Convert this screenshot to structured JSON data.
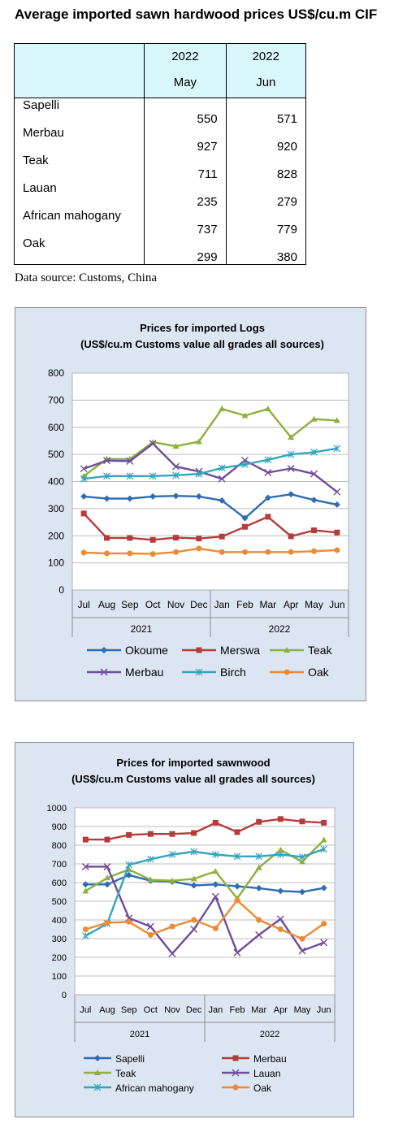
{
  "page_title": "Average imported sawn hardwood prices US$/cu.m CIF",
  "table": {
    "col1": {
      "year": "2022",
      "month": "May"
    },
    "col2": {
      "year": "2022",
      "month": "Jun"
    },
    "rows": [
      {
        "name": "Sapelli",
        "may": "550",
        "jun": "571"
      },
      {
        "name": "Merbau",
        "may": "927",
        "jun": "920"
      },
      {
        "name": "Teak",
        "may": "711",
        "jun": "828"
      },
      {
        "name": "Lauan",
        "may": "235",
        "jun": "279"
      },
      {
        "name": "African mahogany",
        "may": "737",
        "jun": "779"
      },
      {
        "name": "Oak",
        "may": "299",
        "jun": "380"
      }
    ]
  },
  "data_source": "Data source: Customs, China",
  "chart_data": [
    {
      "type": "line",
      "title": "Prices for imported Logs",
      "subtitle": "(US$/cu.m Customs value all grades all sources)",
      "categories": [
        "Jul",
        "Aug",
        "Sep",
        "Oct",
        "Nov",
        "Dec",
        "Jan",
        "Feb",
        "Mar",
        "Apr",
        "May",
        "Jun"
      ],
      "year_groups": [
        {
          "label": "2021",
          "count": 6
        },
        {
          "label": "2022",
          "count": 6
        }
      ],
      "ylim": [
        0,
        800
      ],
      "yticks": [
        0,
        100,
        200,
        300,
        400,
        500,
        600,
        700,
        800
      ],
      "grid": true,
      "legend_position": "bottom",
      "series": [
        {
          "name": "Okoume",
          "color": "#2e6db4",
          "marker": "diamond",
          "values": [
            345,
            337,
            337,
            345,
            347,
            345,
            330,
            265,
            340,
            353,
            332,
            315
          ]
        },
        {
          "name": "Merswa",
          "color": "#b83b3b",
          "marker": "square",
          "values": [
            282,
            192,
            192,
            185,
            193,
            190,
            197,
            233,
            270,
            198,
            220,
            212
          ]
        },
        {
          "name": "Teak",
          "color": "#8db03e",
          "marker": "triangle",
          "values": [
            420,
            483,
            483,
            545,
            530,
            547,
            668,
            643,
            668,
            563,
            630,
            625
          ]
        },
        {
          "name": "Merbau",
          "color": "#6e4d9a",
          "marker": "x",
          "values": [
            447,
            477,
            475,
            540,
            455,
            437,
            410,
            478,
            433,
            448,
            428,
            362
          ]
        },
        {
          "name": "Birch",
          "color": "#35a4bc",
          "marker": "asterisk",
          "values": [
            410,
            420,
            420,
            420,
            423,
            428,
            450,
            463,
            480,
            500,
            508,
            522
          ]
        },
        {
          "name": "Oak",
          "color": "#ee8a33",
          "marker": "circle",
          "values": [
            138,
            135,
            135,
            133,
            140,
            153,
            140,
            140,
            140,
            140,
            143,
            147
          ]
        }
      ]
    },
    {
      "type": "line",
      "title": "Prices for imported sawnwood",
      "subtitle": "(US$/cu.m Customs value all grades all sources)",
      "categories": [
        "Jul",
        "Aug",
        "Sep",
        "Oct",
        "Nov",
        "Dec",
        "Jan",
        "Feb",
        "Mar",
        "Apr",
        "May",
        "Jun"
      ],
      "year_groups": [
        {
          "label": "2021",
          "count": 6
        },
        {
          "label": "2022",
          "count": 6
        }
      ],
      "ylim": [
        0,
        1000
      ],
      "yticks": [
        0,
        100,
        200,
        300,
        400,
        500,
        600,
        700,
        800,
        900,
        1000
      ],
      "grid": true,
      "legend_position": "bottom",
      "series": [
        {
          "name": "Sapelli",
          "color": "#2e6db4",
          "marker": "diamond",
          "values": [
            590,
            590,
            640,
            610,
            605,
            585,
            590,
            580,
            570,
            555,
            550,
            571
          ]
        },
        {
          "name": "Merbau",
          "color": "#b83b3b",
          "marker": "square",
          "values": [
            830,
            830,
            855,
            860,
            860,
            865,
            920,
            870,
            925,
            940,
            927,
            920
          ]
        },
        {
          "name": "Teak",
          "color": "#8db03e",
          "marker": "triangle",
          "values": [
            555,
            625,
            670,
            615,
            610,
            620,
            660,
            515,
            680,
            775,
            711,
            828
          ]
        },
        {
          "name": "Lauan",
          "color": "#6e4d9a",
          "marker": "x",
          "values": [
            685,
            685,
            410,
            365,
            220,
            350,
            525,
            225,
            320,
            405,
            235,
            279
          ]
        },
        {
          "name": "African mahogany",
          "color": "#35a4bc",
          "marker": "asterisk",
          "values": [
            315,
            380,
            695,
            725,
            750,
            765,
            750,
            740,
            740,
            750,
            737,
            779
          ]
        },
        {
          "name": "Oak",
          "color": "#ee8a33",
          "marker": "circle",
          "values": [
            350,
            385,
            390,
            320,
            365,
            400,
            355,
            505,
            400,
            350,
            299,
            380
          ]
        }
      ]
    }
  ]
}
